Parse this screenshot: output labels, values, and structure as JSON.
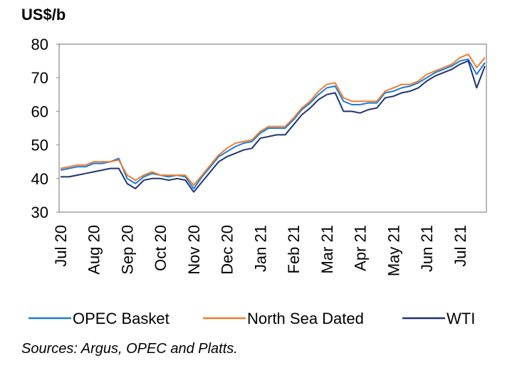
{
  "chart_data": {
    "type": "line",
    "y_label": "US$/b",
    "source": "Sources: Argus, OPEC and Platts.",
    "categories": [
      "Jul 20",
      null,
      null,
      null,
      "Aug 20",
      null,
      null,
      null,
      "Sep 20",
      null,
      null,
      null,
      "Oct 20",
      null,
      null,
      null,
      "Nov 20",
      null,
      null,
      null,
      "Dec 20",
      null,
      null,
      null,
      "Jan 21",
      null,
      null,
      null,
      "Feb 21",
      null,
      null,
      null,
      "Mar 21",
      null,
      null,
      null,
      "Apr 21",
      null,
      null,
      null,
      "May 21",
      null,
      null,
      null,
      "Jun 21",
      null,
      null,
      null,
      "Jul 21",
      null,
      null,
      null
    ],
    "series": [
      {
        "name": "OPEC Basket",
        "color": "#1f7bd8",
        "values": [
          42.5,
          43,
          43.5,
          43.5,
          44.5,
          44.5,
          45,
          46,
          40,
          38.5,
          40.5,
          41.5,
          41,
          40.5,
          41,
          40.5,
          37,
          40.5,
          43.5,
          46.5,
          48,
          49.5,
          50.5,
          51,
          53.5,
          55,
          55,
          55,
          57.5,
          60.5,
          62.5,
          65,
          67,
          67.5,
          63,
          62,
          62,
          62.5,
          62.5,
          65.5,
          66,
          67,
          67.5,
          68.5,
          70,
          71.5,
          72.5,
          73.5,
          75,
          75.5,
          71,
          74.5
        ]
      },
      {
        "name": "North Sea Dated",
        "color": "#ed7d31",
        "values": [
          43,
          43.5,
          44,
          44,
          45,
          45,
          45,
          45.5,
          41,
          39.5,
          41,
          42,
          41,
          41,
          41,
          41,
          38,
          41,
          44,
          47,
          49,
          50.5,
          51,
          51.5,
          54,
          55.5,
          55.5,
          55.5,
          58,
          61,
          63,
          66,
          68,
          68.5,
          64,
          63,
          63,
          63,
          63,
          66,
          67,
          68,
          68,
          69,
          71,
          72,
          73,
          74,
          76,
          77,
          73,
          76
        ]
      },
      {
        "name": "WTI",
        "color": "#1f3375",
        "values": [
          40.5,
          40.5,
          41,
          41.5,
          42,
          42.5,
          43,
          43,
          38.5,
          37,
          39.5,
          40,
          40,
          39.5,
          40,
          39.5,
          36,
          39,
          42,
          45,
          46.5,
          47.5,
          48.5,
          49,
          52,
          52.5,
          53,
          53,
          56,
          59,
          61,
          63.5,
          65,
          65.5,
          60,
          60,
          59.5,
          60.5,
          61,
          64,
          64.5,
          65.5,
          66,
          67,
          69,
          70.5,
          71.5,
          72.5,
          74,
          75,
          67,
          73.5
        ]
      }
    ],
    "ylim": [
      30,
      80
    ],
    "yticks": [
      30,
      40,
      50,
      60,
      70,
      80
    ],
    "legend": "bottom"
  }
}
